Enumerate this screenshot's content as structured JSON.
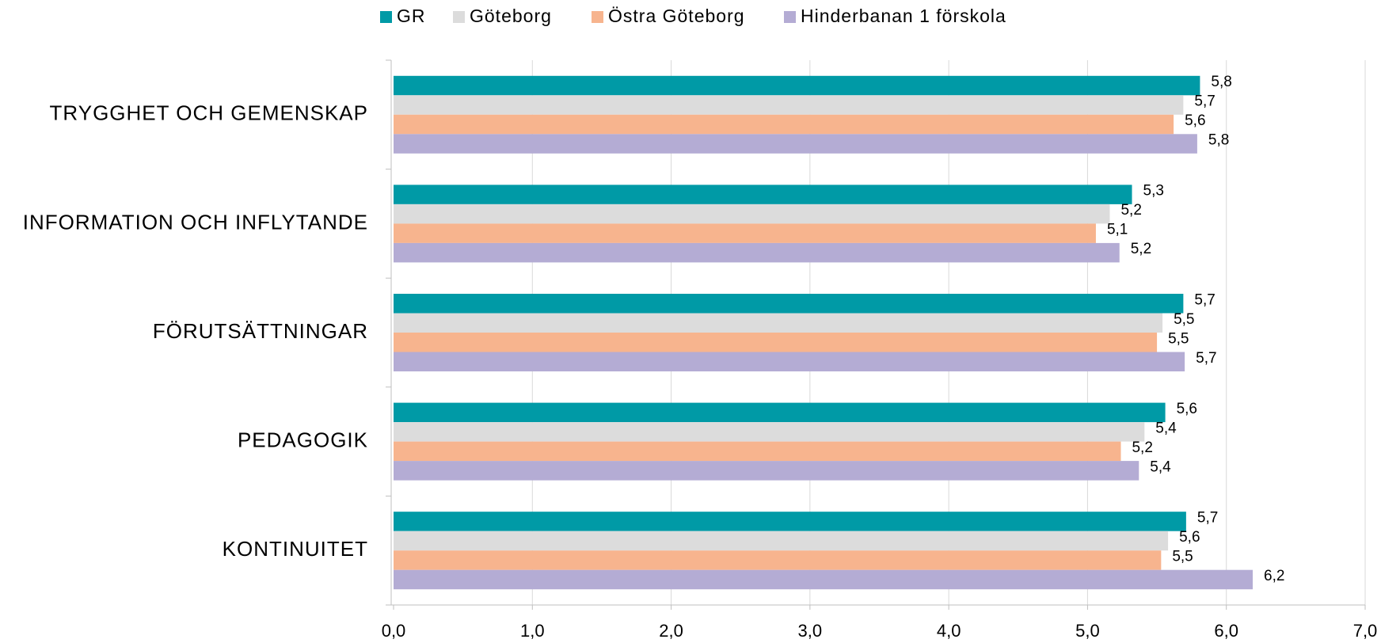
{
  "chart_data": {
    "type": "hbar",
    "categories": [
      "TRYGGHET OCH GEMENSKAP",
      "INFORMATION OCH INFLYTANDE",
      "FÖRUTSÄTTNINGAR",
      "PEDAGOGIK",
      "KONTINUITET"
    ],
    "series": [
      {
        "name": "GR",
        "color": "#009aa6",
        "values": [
          5.81,
          5.32,
          5.69,
          5.56,
          5.71
        ],
        "value_labels": [
          "5,8",
          "5,3",
          "5,7",
          "5,6",
          "5,7"
        ]
      },
      {
        "name": "Göteborg",
        "color": "#dcdcdc",
        "values": [
          5.69,
          5.16,
          5.54,
          5.41,
          5.58
        ],
        "value_labels": [
          "5,7",
          "5,2",
          "5,5",
          "5,4",
          "5,6"
        ]
      },
      {
        "name": "Östra Göteborg",
        "color": "#f7b48e",
        "values": [
          5.62,
          5.06,
          5.5,
          5.24,
          5.53
        ],
        "value_labels": [
          "5,6",
          "5,1",
          "5,5",
          "5,2",
          "5,5"
        ]
      },
      {
        "name": "Hinderbanan 1 förskola",
        "color": "#b4acd4",
        "values": [
          5.79,
          5.23,
          5.7,
          5.37,
          6.19
        ],
        "value_labels": [
          "5,8",
          "5,2",
          "5,7",
          "5,4",
          "6,2"
        ]
      }
    ],
    "xlim": [
      0,
      7
    ],
    "xticks": [
      {
        "value": 0,
        "label": "0,0"
      },
      {
        "value": 1,
        "label": "1,0"
      },
      {
        "value": 2,
        "label": "2,0"
      },
      {
        "value": 3,
        "label": "3,0"
      },
      {
        "value": 4,
        "label": "4,0"
      },
      {
        "value": 5,
        "label": "5,0"
      },
      {
        "value": 6,
        "label": "6,0"
      },
      {
        "value": 7,
        "label": "7,0"
      }
    ],
    "grid": true,
    "legend": "top"
  }
}
